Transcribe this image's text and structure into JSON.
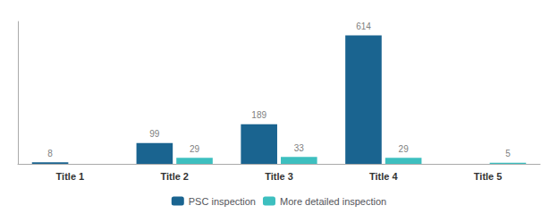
{
  "chart_data": {
    "type": "bar",
    "categories": [
      "Title 1",
      "Title 2",
      "Title 3",
      "Title 4",
      "Title 5"
    ],
    "series": [
      {
        "name": "PSC inspection",
        "color": "#1a6490",
        "values": [
          8,
          99,
          189,
          614,
          0
        ],
        "value_labels": [
          "8",
          "99",
          "189",
          "614",
          null
        ]
      },
      {
        "name": "More detailed inspection",
        "color": "#3dbfbf",
        "values": [
          0,
          29,
          33,
          29,
          5
        ],
        "value_labels": [
          null,
          "29",
          "33",
          "29",
          "5"
        ]
      }
    ],
    "ylim": [
      0,
      680
    ],
    "grid": false,
    "legend": "bottom",
    "data_labels": true,
    "tick_labels": "x"
  }
}
